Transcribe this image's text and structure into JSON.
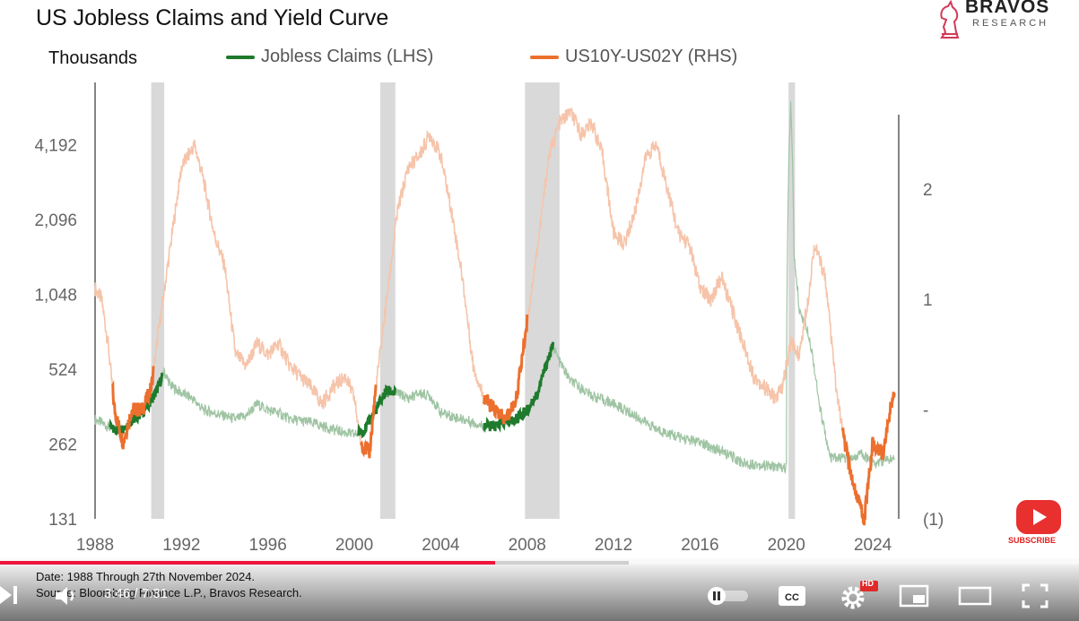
{
  "chart_data": {
    "type": "line",
    "title": "US Jobless Claims and Yield Curve",
    "left_axis_label": "Thousands",
    "left_axis": {
      "scale": "log2",
      "ticks": [
        "4,192",
        "2,096",
        "1,048",
        "524",
        "262",
        "131"
      ],
      "range": [
        131,
        8384
      ]
    },
    "right_axis": {
      "ticks": [
        "2",
        "1",
        "-",
        "(1)"
      ],
      "range": [
        -1,
        2.8
      ]
    },
    "x_ticks": [
      "1988",
      "1992",
      "1996",
      "2000",
      "2004",
      "2008",
      "2012",
      "2016",
      "2020",
      "2024"
    ],
    "x_range": [
      1988,
      2025.2
    ],
    "legend": [
      {
        "label": "Jobless Claims (LHS)",
        "color": "#1e7a2c"
      },
      {
        "label": "US10Y-US02Y (RHS)",
        "color": "#ec6f2d"
      }
    ],
    "recessions": [
      [
        1990.6,
        1991.2
      ],
      [
        2001.2,
        2001.9
      ],
      [
        2007.9,
        2009.5
      ],
      [
        2020.1,
        2020.4
      ]
    ],
    "series": [
      {
        "name": "Jobless Claims (LHS)",
        "axis": "left",
        "points": [
          [
            1988.0,
            330
          ],
          [
            1988.8,
            300
          ],
          [
            1989.2,
            300
          ],
          [
            1989.8,
            330
          ],
          [
            1990.3,
            360
          ],
          [
            1990.8,
            420
          ],
          [
            1991.2,
            510
          ],
          [
            1991.5,
            450
          ],
          [
            1992.0,
            420
          ],
          [
            1992.5,
            400
          ],
          [
            1993.0,
            360
          ],
          [
            1993.5,
            350
          ],
          [
            1994.0,
            340
          ],
          [
            1994.5,
            330
          ],
          [
            1995.0,
            340
          ],
          [
            1995.5,
            380
          ],
          [
            1996.0,
            360
          ],
          [
            1996.5,
            350
          ],
          [
            1997.0,
            330
          ],
          [
            1998.0,
            320
          ],
          [
            1999.0,
            300
          ],
          [
            2000.0,
            285
          ],
          [
            2000.5,
            300
          ],
          [
            2001.0,
            360
          ],
          [
            2001.5,
            430
          ],
          [
            2002.0,
            420
          ],
          [
            2002.5,
            400
          ],
          [
            2003.0,
            420
          ],
          [
            2003.5,
            410
          ],
          [
            2004.0,
            350
          ],
          [
            2005.0,
            330
          ],
          [
            2006.0,
            310
          ],
          [
            2006.5,
            310
          ],
          [
            2007.0,
            320
          ],
          [
            2007.5,
            330
          ],
          [
            2008.0,
            360
          ],
          [
            2008.5,
            420
          ],
          [
            2009.2,
            650
          ],
          [
            2009.5,
            560
          ],
          [
            2010.0,
            470
          ],
          [
            2011.0,
            410
          ],
          [
            2012.0,
            380
          ],
          [
            2013.0,
            340
          ],
          [
            2014.0,
            300
          ],
          [
            2015.0,
            280
          ],
          [
            2016.0,
            265
          ],
          [
            2017.0,
            245
          ],
          [
            2018.0,
            220
          ],
          [
            2019.0,
            215
          ],
          [
            2020.0,
            210
          ],
          [
            2020.2,
            6000
          ],
          [
            2020.35,
            1500
          ],
          [
            2020.6,
            900
          ],
          [
            2021.0,
            750
          ],
          [
            2021.5,
            380
          ],
          [
            2022.0,
            230
          ],
          [
            2022.5,
            230
          ],
          [
            2023.0,
            230
          ],
          [
            2023.5,
            240
          ],
          [
            2024.0,
            220
          ],
          [
            2025.0,
            230
          ]
        ],
        "highlight": [
          [
            1988.7,
            1991.1
          ],
          [
            2000.2,
            2001.9
          ],
          [
            2006.0,
            2009.2
          ]
        ]
      },
      {
        "name": "US10Y-US02Y (RHS)",
        "axis": "right",
        "points": [
          [
            1988.0,
            1.1
          ],
          [
            1988.3,
            1.0
          ],
          [
            1988.6,
            0.6
          ],
          [
            1988.9,
            0.0
          ],
          [
            1989.3,
            -0.3
          ],
          [
            1989.7,
            0.0
          ],
          [
            1990.2,
            0.0
          ],
          [
            1990.6,
            0.2
          ],
          [
            1991.0,
            0.8
          ],
          [
            1991.5,
            1.5
          ],
          [
            1992.0,
            2.2
          ],
          [
            1992.6,
            2.4
          ],
          [
            1993.0,
            2.1
          ],
          [
            1993.5,
            1.6
          ],
          [
            1994.0,
            1.3
          ],
          [
            1994.5,
            0.5
          ],
          [
            1995.0,
            0.4
          ],
          [
            1995.5,
            0.6
          ],
          [
            1996.0,
            0.5
          ],
          [
            1996.5,
            0.6
          ],
          [
            1997.0,
            0.4
          ],
          [
            1997.5,
            0.3
          ],
          [
            1998.0,
            0.2
          ],
          [
            1998.5,
            0.05
          ],
          [
            1999.0,
            0.2
          ],
          [
            1999.6,
            0.3
          ],
          [
            2000.0,
            0.1
          ],
          [
            2000.3,
            -0.3
          ],
          [
            2000.7,
            -0.4
          ],
          [
            2001.0,
            0.2
          ],
          [
            2001.5,
            1.0
          ],
          [
            2002.0,
            1.8
          ],
          [
            2002.5,
            2.2
          ],
          [
            2003.0,
            2.3
          ],
          [
            2003.5,
            2.5
          ],
          [
            2004.0,
            2.3
          ],
          [
            2004.5,
            1.8
          ],
          [
            2005.0,
            1.2
          ],
          [
            2005.5,
            0.4
          ],
          [
            2006.0,
            0.1
          ],
          [
            2006.5,
            0.0
          ],
          [
            2007.0,
            -0.1
          ],
          [
            2007.5,
            0.1
          ],
          [
            2008.0,
            0.8
          ],
          [
            2008.5,
            1.5
          ],
          [
            2009.0,
            2.3
          ],
          [
            2009.5,
            2.6
          ],
          [
            2010.0,
            2.7
          ],
          [
            2010.5,
            2.5
          ],
          [
            2011.0,
            2.6
          ],
          [
            2011.5,
            2.3
          ],
          [
            2012.0,
            1.6
          ],
          [
            2012.5,
            1.5
          ],
          [
            2013.0,
            1.8
          ],
          [
            2013.5,
            2.3
          ],
          [
            2014.0,
            2.4
          ],
          [
            2014.5,
            2.0
          ],
          [
            2015.0,
            1.6
          ],
          [
            2015.5,
            1.5
          ],
          [
            2016.0,
            1.1
          ],
          [
            2016.5,
            1.0
          ],
          [
            2017.0,
            1.2
          ],
          [
            2017.5,
            0.9
          ],
          [
            2018.0,
            0.6
          ],
          [
            2018.5,
            0.3
          ],
          [
            2019.0,
            0.2
          ],
          [
            2019.5,
            0.1
          ],
          [
            2019.8,
            0.2
          ],
          [
            2020.2,
            0.6
          ],
          [
            2020.6,
            0.5
          ],
          [
            2021.0,
            1.0
          ],
          [
            2021.3,
            1.5
          ],
          [
            2021.8,
            1.2
          ],
          [
            2022.0,
            0.8
          ],
          [
            2022.3,
            0.2
          ],
          [
            2022.6,
            -0.2
          ],
          [
            2023.0,
            -0.6
          ],
          [
            2023.3,
            -0.8
          ],
          [
            2023.6,
            -1.0
          ],
          [
            2024.0,
            -0.3
          ],
          [
            2024.5,
            -0.4
          ],
          [
            2024.8,
            0.0
          ],
          [
            2025.0,
            0.15
          ]
        ],
        "highlight": [
          [
            1988.8,
            1990.7
          ],
          [
            2000.3,
            2001.0
          ],
          [
            2006.0,
            2008.0
          ],
          [
            2022.6,
            2025.2
          ]
        ]
      }
    ]
  },
  "footer": {
    "date_note": "Date: 1988 Through 27th November 2024.",
    "source_note": "Source: Bloomberg Finance L.P., Bravos Research."
  },
  "player": {
    "time": "3:46 / 7:31",
    "progress": 0.4585,
    "buffered": 0.583,
    "subscribe": "SUBSCRIBE",
    "hd_badge": "HD"
  },
  "logo": {
    "name": "BRAVOS",
    "sub": "RESEARCH"
  }
}
